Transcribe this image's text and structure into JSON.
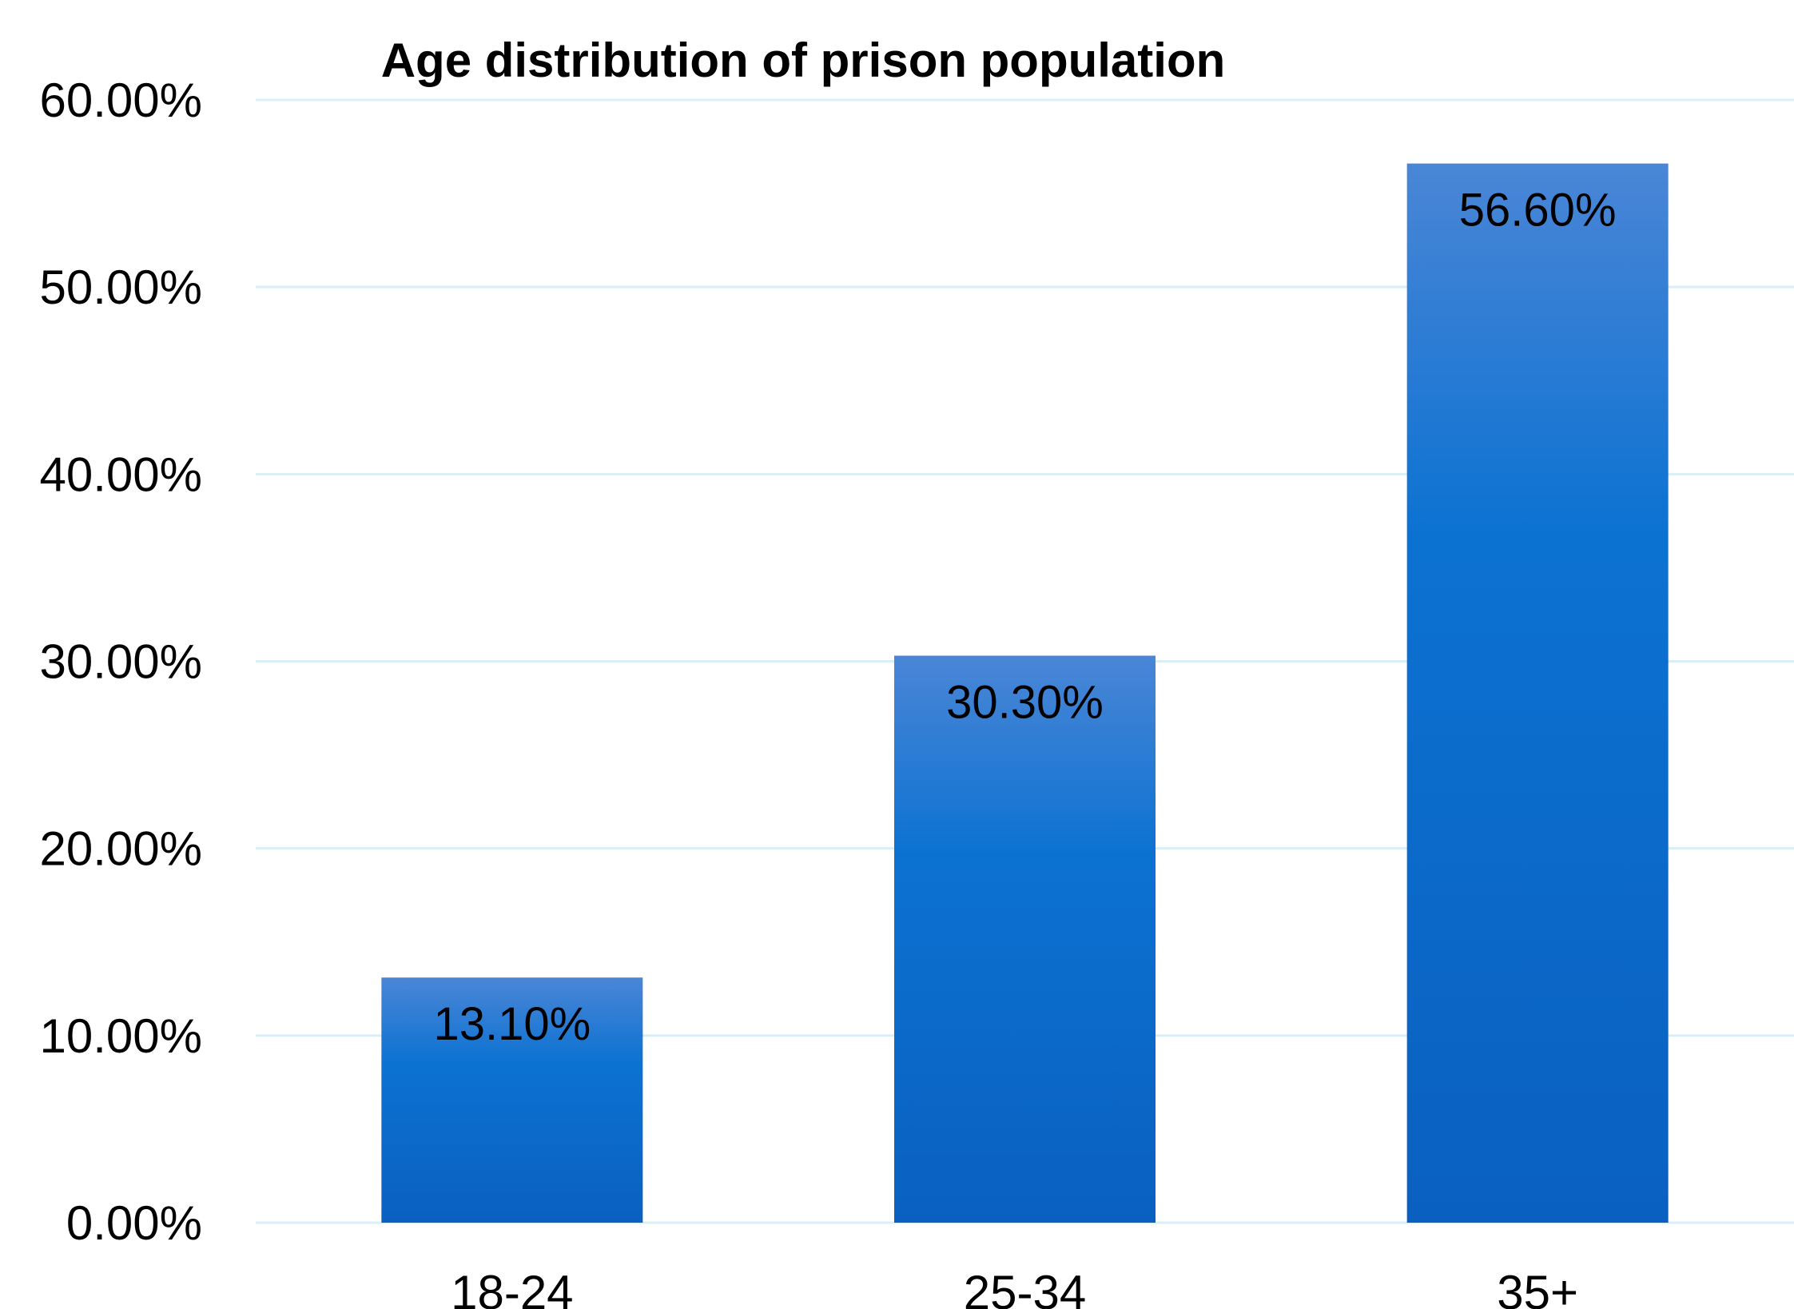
{
  "chart_data": {
    "type": "bar",
    "title": "Age distribution of prison population",
    "xlabel": "",
    "ylabel": "",
    "categories": [
      "18-24",
      "25-34",
      "35+"
    ],
    "values": [
      13.1,
      30.3,
      56.6
    ],
    "data_labels": [
      "13.10%",
      "30.30%",
      "56.60%"
    ],
    "ylim": [
      0,
      60
    ],
    "yticks": [
      0,
      10,
      20,
      30,
      40,
      50,
      60
    ],
    "ytick_labels": [
      "0.00%",
      "10.00%",
      "20.00%",
      "30.00%",
      "40.00%",
      "50.00%",
      "60.00%"
    ],
    "grid": true,
    "legend": "none",
    "colors": {
      "bar_top": "#4a86d6",
      "bar_bottom": "#0a60c0",
      "gridline": "#d9eff8",
      "text": "#000000"
    }
  }
}
